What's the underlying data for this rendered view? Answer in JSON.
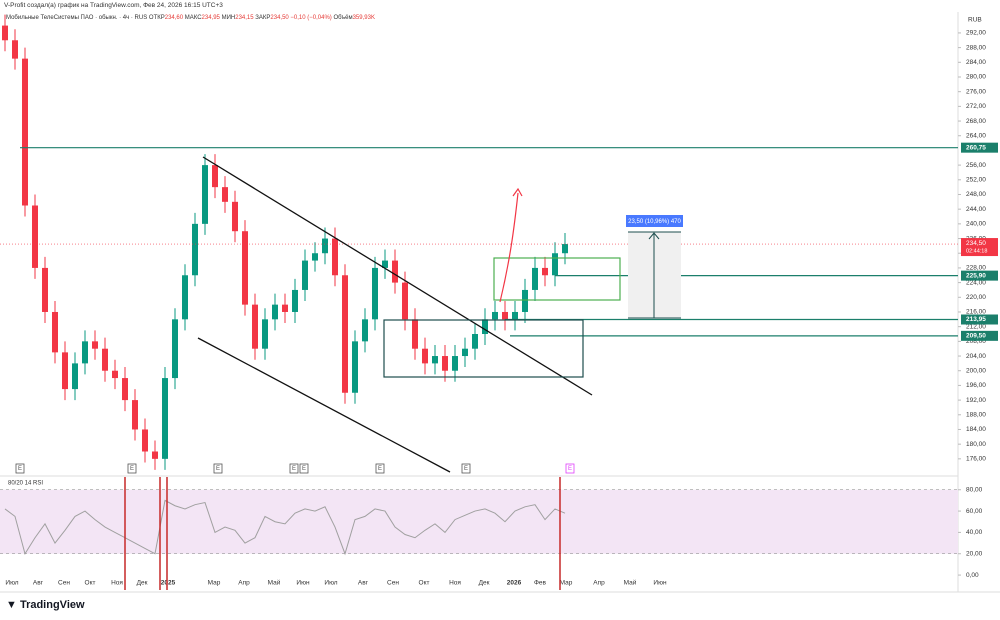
{
  "header": "V-Profit создал(а) график на TradingView.com, Фев 24, 2026 16:15 UTC+3",
  "logo": "TradingView",
  "chart_data": [
    {
      "type": "candlestick",
      "title": "Мобильные ТелеСистемы ПАО · обыкн. · 4ч · RUS",
      "ohlc_labels": [
        {
          "key": "ОТКР",
          "value": "234,60"
        },
        {
          "key": "МАКС",
          "value": "234,95"
        },
        {
          "key": "МИН",
          "value": "234,15"
        },
        {
          "key": "ЗАКР",
          "value": "234,50"
        }
      ],
      "change": "−0,10 (−0,04%)",
      "volume_key": "Объём",
      "volume": "359,93K",
      "currency": "RUB",
      "up_color": "#089981",
      "down_color": "#f23645",
      "open": [
        294,
        290,
        285,
        245,
        228,
        216,
        205,
        195,
        202,
        208,
        206,
        200,
        198,
        192,
        184,
        178,
        176,
        198,
        214,
        226,
        240,
        256,
        250,
        246,
        238,
        218,
        206,
        214,
        218,
        216,
        222,
        230,
        232,
        236,
        226,
        194,
        208,
        214,
        228,
        230,
        224,
        214,
        206,
        202,
        204,
        200,
        204,
        206,
        210,
        214,
        216,
        214,
        216,
        222,
        228,
        226,
        232
      ],
      "high": [
        297,
        293,
        288,
        248,
        231,
        219,
        208,
        205,
        211,
        211,
        209,
        203,
        201,
        195,
        187,
        181,
        201,
        217,
        229,
        243,
        259,
        259,
        253,
        249,
        241,
        221,
        217,
        221,
        221,
        225,
        233,
        235,
        239,
        239,
        229,
        211,
        217,
        231,
        233,
        233,
        227,
        217,
        209,
        207,
        207,
        207,
        209,
        213,
        217,
        219,
        219,
        219,
        225,
        231,
        231,
        235,
        237.5
      ],
      "low": [
        287,
        282,
        242,
        225,
        213,
        202,
        192,
        192,
        199,
        203,
        197,
        195,
        189,
        181,
        175,
        173,
        173,
        195,
        211,
        223,
        237,
        247,
        243,
        235,
        215,
        203,
        203,
        211,
        213,
        213,
        219,
        227,
        229,
        223,
        191,
        191,
        205,
        211,
        225,
        221,
        211,
        203,
        199,
        199,
        197,
        197,
        201,
        203,
        207,
        211,
        211,
        211,
        213,
        219,
        223,
        223,
        229
      ],
      "close": [
        290,
        285,
        245,
        228,
        216,
        205,
        195,
        202,
        208,
        206,
        200,
        198,
        192,
        184,
        178,
        176,
        198,
        214,
        226,
        240,
        256,
        250,
        246,
        238,
        218,
        206,
        214,
        218,
        216,
        222,
        230,
        232,
        236,
        226,
        194,
        208,
        214,
        228,
        230,
        224,
        214,
        206,
        202,
        204,
        200,
        204,
        206,
        210,
        214,
        216,
        214,
        216,
        222,
        228,
        226,
        232,
        234.5
      ],
      "ylim": [
        171.6,
        297.7
      ],
      "yticks": [
        {
          "value": 176,
          "label": "176,00"
        },
        {
          "value": 180,
          "label": "180,00"
        },
        {
          "value": 184,
          "label": "184,00"
        },
        {
          "value": 188,
          "label": "188,00"
        },
        {
          "value": 192,
          "label": "192,00"
        },
        {
          "value": 196,
          "label": "196,00"
        },
        {
          "value": 200,
          "label": "200,00"
        },
        {
          "value": 204,
          "label": "204,00"
        },
        {
          "value": 208,
          "label": "208,00"
        },
        {
          "value": 212,
          "label": "212,00"
        },
        {
          "value": 216,
          "label": "216,00"
        },
        {
          "value": 220,
          "label": "220,00"
        },
        {
          "value": 224,
          "label": "224,00"
        },
        {
          "value": 228,
          "label": "228,00"
        },
        {
          "value": 232,
          "label": "232,00"
        },
        {
          "value": 236,
          "label": "236,00"
        },
        {
          "value": 240,
          "label": "240,00"
        },
        {
          "value": 244,
          "label": "244,00"
        },
        {
          "value": 248,
          "label": "248,00"
        },
        {
          "value": 252,
          "label": "252,00"
        },
        {
          "value": 256,
          "label": "256,00"
        },
        {
          "value": 264,
          "label": "264,00"
        },
        {
          "value": 268,
          "label": "268,00"
        },
        {
          "value": 272,
          "label": "272,00"
        },
        {
          "value": 276,
          "label": "276,00"
        },
        {
          "value": 280,
          "label": "280,00"
        },
        {
          "value": 284,
          "label": "284,00"
        },
        {
          "value": 288,
          "label": "288,00"
        },
        {
          "value": 292,
          "label": "292,00"
        }
      ],
      "xlim": [
        -0.5,
        95.3
      ],
      "xticks": [
        {
          "value": 0.7,
          "label": "Июл"
        },
        {
          "value": 3.3,
          "label": "Авг"
        },
        {
          "value": 5.9,
          "label": "Сен"
        },
        {
          "value": 8.5,
          "label": "Окт"
        },
        {
          "value": 11.2,
          "label": "Ноя"
        },
        {
          "value": 13.7,
          "label": "Дек"
        },
        {
          "value": 16.3,
          "label": "2025"
        },
        {
          "value": 20.9,
          "label": "Мар"
        },
        {
          "value": 23.9,
          "label": "Апр"
        },
        {
          "value": 26.9,
          "label": "Май"
        },
        {
          "value": 29.8,
          "label": "Июн"
        },
        {
          "value": 32.6,
          "label": "Июл"
        },
        {
          "value": 35.8,
          "label": "Авг"
        },
        {
          "value": 38.8,
          "label": "Сен"
        },
        {
          "value": 41.9,
          "label": "Окт"
        },
        {
          "value": 45,
          "label": "Ноя"
        },
        {
          "value": 47.9,
          "label": "Дек"
        },
        {
          "value": 50.9,
          "label": "2026"
        },
        {
          "value": 53.5,
          "label": "Фев"
        },
        {
          "value": 56.1,
          "label": "Мар"
        },
        {
          "value": 59.4,
          "label": "Апр"
        },
        {
          "value": 62.5,
          "label": "Май"
        },
        {
          "value": 65.5,
          "label": "Июн"
        }
      ],
      "levels": [
        {
          "value": 260.75,
          "label": "260,75"
        },
        {
          "value": 225.9,
          "label": "225,90"
        },
        {
          "value": 213.95,
          "label": "213,95"
        },
        {
          "value": 209.5,
          "label": "209,50"
        }
      ],
      "level_color": "#1b7f6b",
      "last_price": {
        "value": 234.5,
        "label": "234,50"
      },
      "countdown": "02:44:18",
      "measure_label": "23,50 (10,96%) 470",
      "events": [
        {
          "value": 1.5,
          "label": "E",
          "color": "#555555"
        },
        {
          "value": 12.7,
          "label": "E",
          "color": "#555555"
        },
        {
          "value": 21.3,
          "label": "E",
          "color": "#555555"
        },
        {
          "value": 28.9,
          "label": "E",
          "color": "#555555"
        },
        {
          "value": 29.9,
          "label": "E",
          "color": "#555555"
        },
        {
          "value": 37.5,
          "label": "E",
          "color": "#555555"
        },
        {
          "value": 46.1,
          "label": "E",
          "color": "#555555"
        },
        {
          "value": 56.5,
          "label": "E",
          "color": "#e040fb"
        }
      ]
    },
    {
      "type": "line",
      "title": "80/20 14 RSI",
      "color": "#a0a0a0",
      "values": [
        62,
        55,
        20,
        35,
        48,
        30,
        42,
        55,
        60,
        52,
        45,
        40,
        35,
        30,
        25,
        20,
        70,
        65,
        62,
        66,
        68,
        40,
        45,
        42,
        30,
        35,
        55,
        50,
        48,
        58,
        62,
        60,
        64,
        45,
        20,
        52,
        55,
        62,
        60,
        45,
        38,
        35,
        42,
        48,
        40,
        52,
        56,
        60,
        62,
        58,
        50,
        60,
        64,
        66,
        52,
        62,
        58
      ],
      "ylim": [
        -14,
        91
      ],
      "yticks": [
        {
          "value": 0,
          "label": "0,00"
        },
        {
          "value": 20,
          "label": "20,00"
        },
        {
          "value": 40,
          "label": "40,00"
        },
        {
          "value": 60,
          "label": "60,00"
        },
        {
          "value": 80,
          "label": "80,00"
        }
      ],
      "bands": [
        20,
        80
      ],
      "band_color": "#f3e5f5"
    }
  ]
}
